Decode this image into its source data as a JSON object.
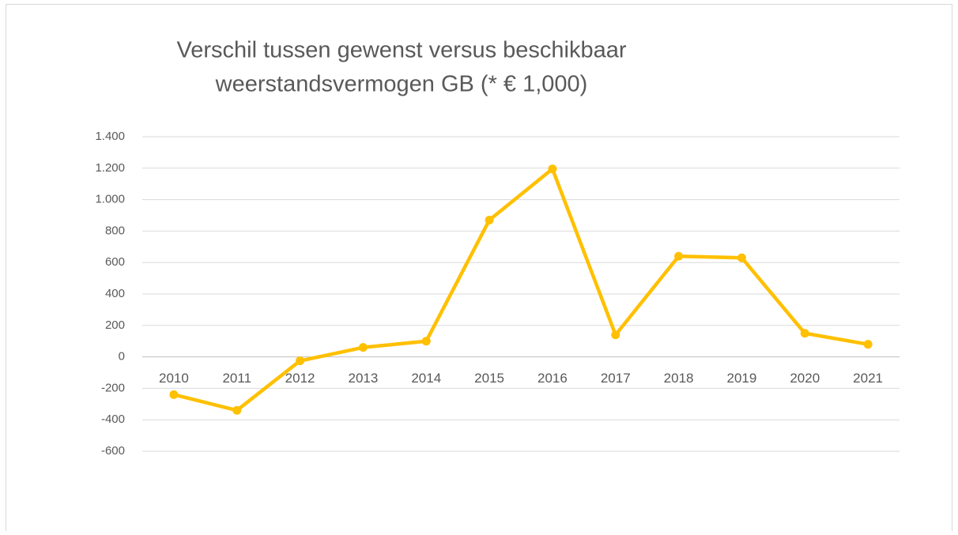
{
  "chart_data": {
    "type": "line",
    "title": [
      "Verschil tussen gewenst versus beschikbaar",
      "weerstandsvermogen GB (* € 1,000)"
    ],
    "categories": [
      "2010",
      "2011",
      "2012",
      "2013",
      "2014",
      "2015",
      "2016",
      "2017",
      "2018",
      "2019",
      "2020",
      "2021"
    ],
    "series": [
      {
        "name": "Verschil",
        "color": "#ffc000",
        "values": [
          -240,
          -340,
          -25,
          60,
          100,
          870,
          1195,
          140,
          640,
          630,
          150,
          80
        ]
      }
    ],
    "ylim": [
      -600,
      1400
    ],
    "yticks": [
      -600,
      -400,
      -200,
      0,
      200,
      400,
      600,
      800,
      {
        "value": 1000,
        "label": "1.000"
      },
      {
        "value": 1200,
        "label": "1.200"
      },
      {
        "value": 1400,
        "label": "1.400"
      }
    ],
    "grid": true
  }
}
